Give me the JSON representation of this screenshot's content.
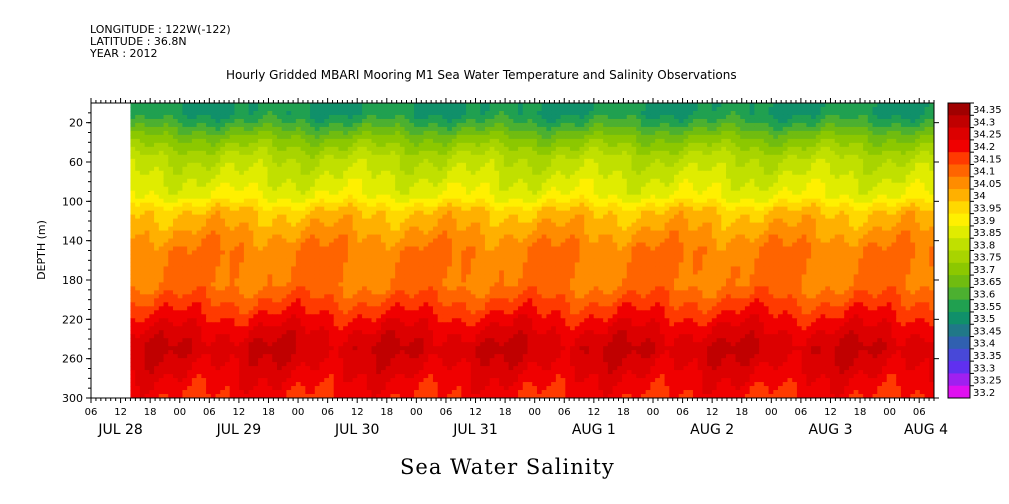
{
  "header": {
    "lines": [
      "LONGITUDE : 122W(-122)",
      "LATITUDE : 36.8N",
      "YEAR : 2012"
    ],
    "title": "Hourly Gridded MBARI Mooring M1 Sea Water Temperature and Salinity Observations"
  },
  "bottom_label": "Sea Water Salinity",
  "chart_data": {
    "type": "heatmap",
    "title": "Hourly Gridded MBARI Mooring M1 Sea Water Temperature and Salinity Observations",
    "xlabel": "",
    "ylabel": "DEPTH (m)",
    "variable": "Sea Water Salinity",
    "x_range": [
      "2012-07-28 06:00",
      "2012-08-04 09:00"
    ],
    "data_start": "2012-07-28 14:00",
    "y_range": [
      0,
      300
    ],
    "y_inverted": true,
    "y_ticks": [
      20,
      60,
      100,
      140,
      180,
      220,
      260,
      300
    ],
    "x_hour_ticks": [
      "06",
      "12",
      "18",
      "00",
      "06",
      "12",
      "18",
      "00",
      "06",
      "12",
      "18",
      "00",
      "06",
      "12",
      "18",
      "00",
      "06",
      "12",
      "18",
      "00",
      "06",
      "12",
      "18",
      "00",
      "06",
      "12",
      "18",
      "00",
      "06"
    ],
    "x_day_labels": [
      "JUL 28",
      "JUL 29",
      "JUL 30",
      "JUL 31",
      "AUG 1",
      "AUG 2",
      "AUG 3",
      "AUG 4"
    ],
    "colorbar_levels": [
      34.35,
      34.3,
      34.25,
      34.2,
      34.15,
      34.1,
      34.05,
      34,
      33.95,
      33.9,
      33.85,
      33.8,
      33.75,
      33.7,
      33.65,
      33.6,
      33.55,
      33.5,
      33.45,
      33.4,
      33.35,
      33.3,
      33.25,
      33.2
    ],
    "colorbar_labels": [
      "34.35",
      "34.3",
      "34.25",
      "34.2",
      "34.15",
      "34.1",
      "34.05",
      "34",
      "33.95",
      "33.9",
      "33.85",
      "33.8",
      "33.75",
      "33.7",
      "33.65",
      "33.6",
      "33.55",
      "33.5",
      "33.45",
      "33.4",
      "33.35",
      "33.3",
      "33.25",
      "33.2"
    ],
    "colorbar_colors": [
      "#a00000",
      "#c00000",
      "#dc0000",
      "#f00000",
      "#ff3a00",
      "#ff6400",
      "#ff8c00",
      "#ffb000",
      "#ffd800",
      "#fff000",
      "#e0ec00",
      "#c0e000",
      "#a8d400",
      "#8cc800",
      "#70bc10",
      "#4cb030",
      "#20a050",
      "#10906a",
      "#207888",
      "#3060b0",
      "#4848d8",
      "#6030f0",
      "#a020f0",
      "#e010f0"
    ],
    "depth_profile": [
      {
        "depth": 10,
        "value": 33.55
      },
      {
        "depth": 20,
        "value": 33.6
      },
      {
        "depth": 35,
        "value": 33.7
      },
      {
        "depth": 55,
        "value": 33.8
      },
      {
        "depth": 75,
        "value": 33.85
      },
      {
        "depth": 95,
        "value": 33.9
      },
      {
        "depth": 110,
        "value": 34.0
      },
      {
        "depth": 130,
        "value": 34.05
      },
      {
        "depth": 150,
        "value": 34.1
      },
      {
        "depth": 185,
        "value": 34.1
      },
      {
        "depth": 200,
        "value": 34.15
      },
      {
        "depth": 215,
        "value": 34.2
      },
      {
        "depth": 230,
        "value": 34.25
      },
      {
        "depth": 250,
        "value": 34.3
      },
      {
        "depth": 275,
        "value": 34.25
      },
      {
        "depth": 300,
        "value": 34.2
      }
    ]
  }
}
